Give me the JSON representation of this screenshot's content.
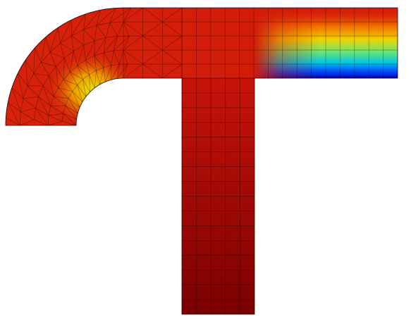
{
  "figure": {
    "kind": "finite-element-mesh-field",
    "regions": [
      "curved-elbow",
      "horizontal-arm",
      "vertical-stem"
    ],
    "elbow_mesh": "triangular",
    "arm_mesh": "quadrilateral",
    "stem_mesh": "quadrilateral",
    "colormap": "jet",
    "colors": {
      "background": "#ffffff",
      "dark_red": "#8a0000",
      "red": "#d21e0a",
      "orange": "#f08c00",
      "yellow": "#e6e600",
      "cyan": "#00c8e6",
      "blue": "#0030ff",
      "deep_blue": "#0000b4",
      "mesh_line": "#000000"
    }
  }
}
